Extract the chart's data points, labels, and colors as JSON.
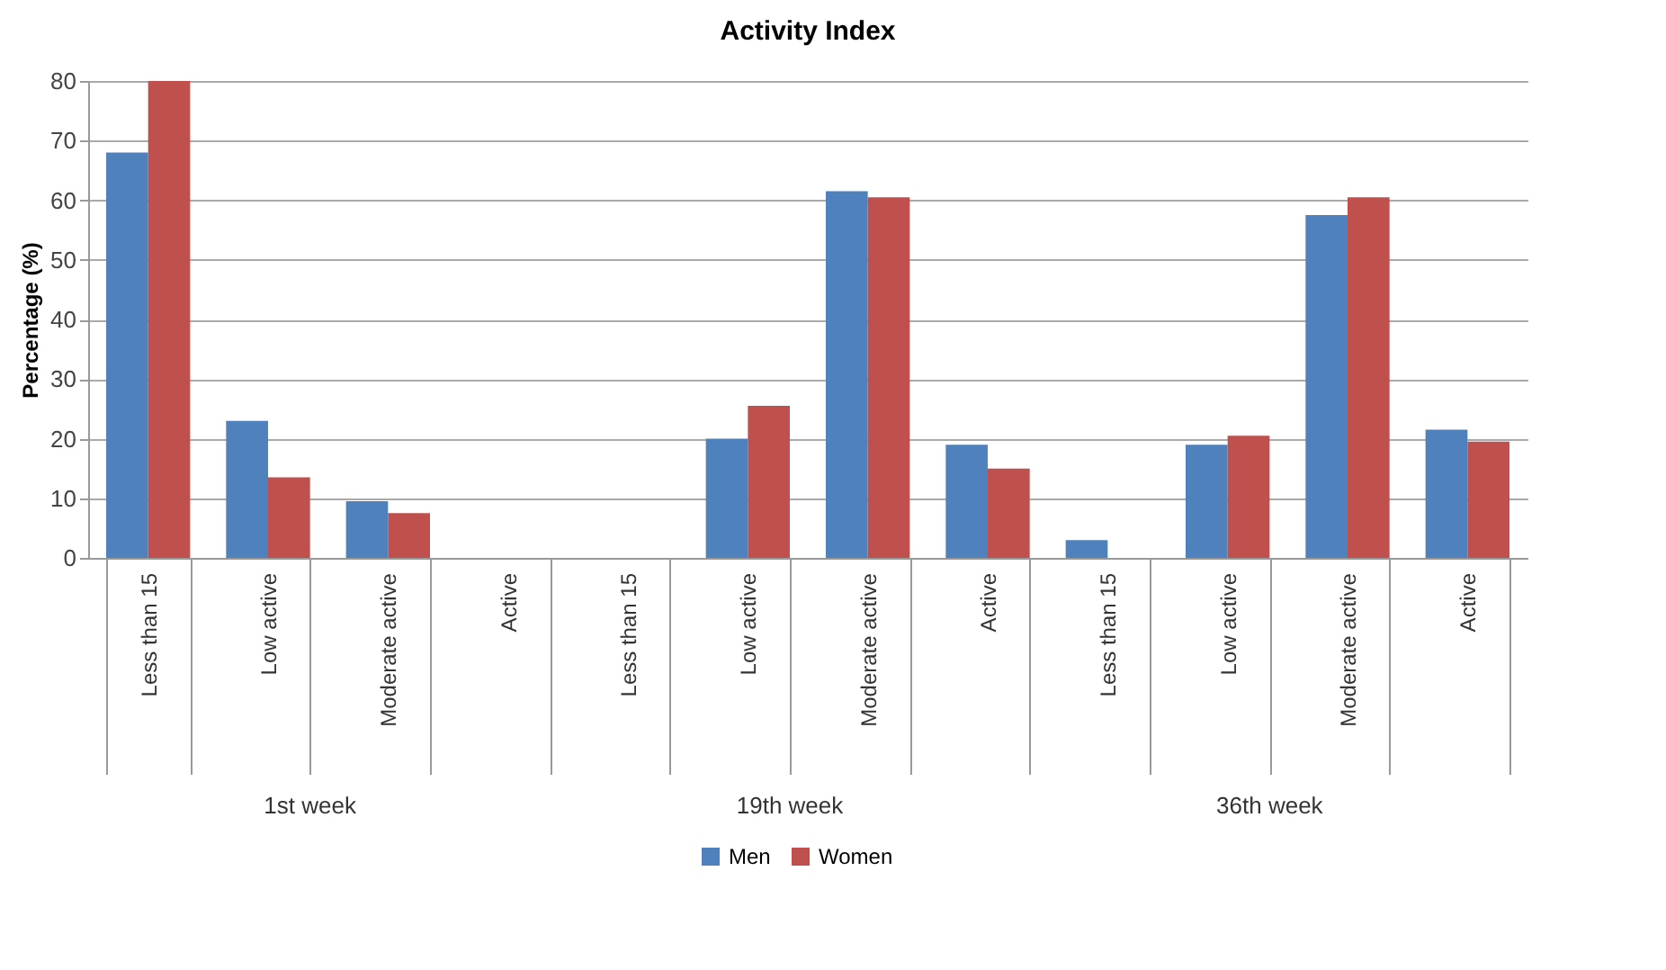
{
  "chart_data": {
    "type": "bar",
    "title": "Activity Index",
    "ylabel": "Percentage (%)",
    "categories": [
      "Less than 15",
      "Low active",
      "Moderate active",
      "Active",
      "Less than 15",
      "Low active",
      "Moderate active",
      "Active",
      "Less than 15",
      "Low active",
      "Moderate active",
      "Active"
    ],
    "annotations": [
      "1st week",
      "19th week",
      "36th week"
    ],
    "series": [
      {
        "name": "Men",
        "color": "#4f81bd",
        "values": [
          68,
          23,
          9.5,
          0,
          0,
          20,
          61.5,
          19,
          3,
          19,
          57.5,
          21.5
        ]
      },
      {
        "name": "Women",
        "color": "#c0504d",
        "values": [
          80,
          13.5,
          7.5,
          0,
          0,
          25.5,
          60.5,
          15,
          0,
          20.5,
          60.5,
          19.5
        ]
      }
    ],
    "ylim": [
      0,
      80
    ],
    "yticks": [
      0,
      10,
      20,
      30,
      40,
      50,
      60,
      70,
      80
    ],
    "grid": "y",
    "legend": "bottom"
  }
}
